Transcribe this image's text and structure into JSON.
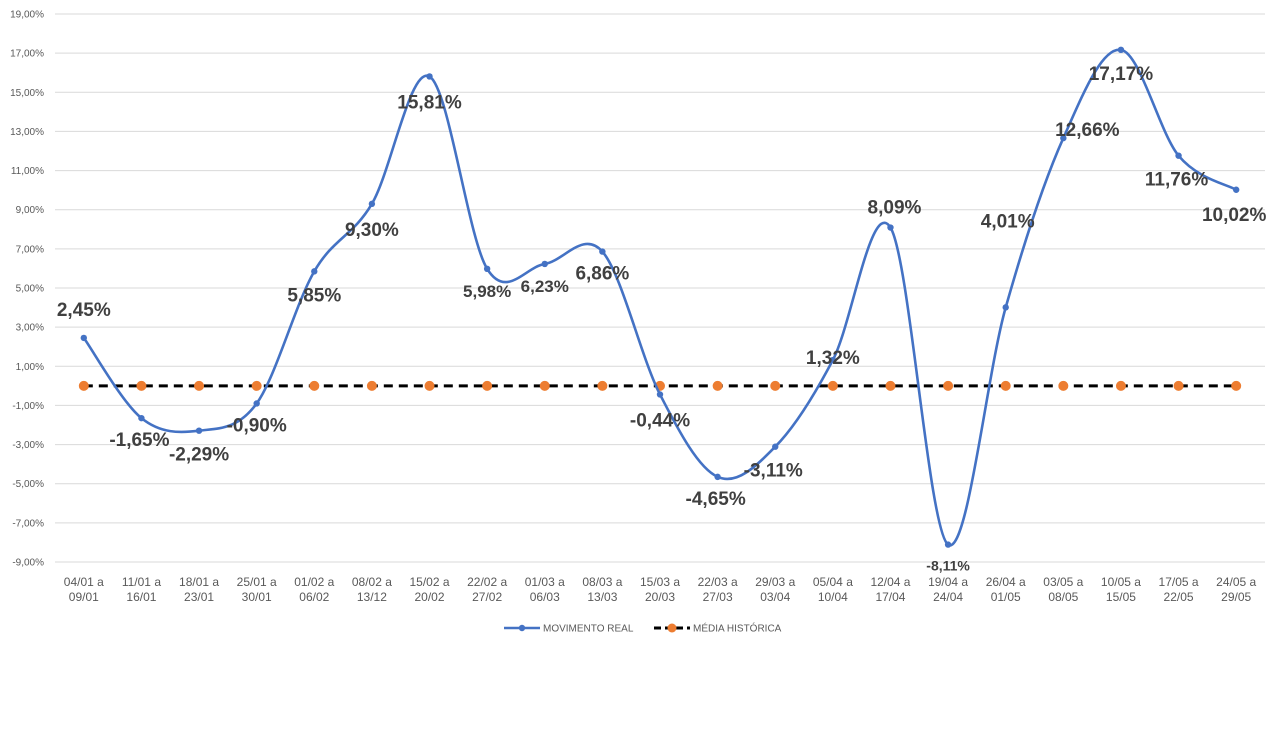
{
  "chart_data": {
    "type": "line",
    "title": "",
    "xlabel": "",
    "ylabel": "",
    "ylim": [
      -9,
      19
    ],
    "ytick_step": 2,
    "ytick_format": "0,00%",
    "grid": true,
    "legend_position": "bottom",
    "categories": [
      [
        "04/01 a",
        "09/01"
      ],
      [
        "11/01 a",
        "16/01"
      ],
      [
        "18/01 a",
        "23/01"
      ],
      [
        "25/01 a",
        "30/01"
      ],
      [
        "01/02 a",
        "06/02"
      ],
      [
        "08/02 a",
        "13/12"
      ],
      [
        "15/02 a",
        "20/02"
      ],
      [
        "22/02 a",
        "27/02"
      ],
      [
        "01/03 a",
        "06/03"
      ],
      [
        "08/03 a",
        "13/03"
      ],
      [
        "15/03 a",
        "20/03"
      ],
      [
        "22/03 a",
        "27/03"
      ],
      [
        "29/03 a",
        "03/04"
      ],
      [
        "05/04 a",
        "10/04"
      ],
      [
        "12/04 a",
        "17/04"
      ],
      [
        "19/04 a",
        "24/04"
      ],
      [
        "26/04 a",
        "01/05"
      ],
      [
        "03/05 a",
        "08/05"
      ],
      [
        "10/05 a",
        "15/05"
      ],
      [
        "17/05 a",
        "22/05"
      ],
      [
        "24/05 a",
        "29/05"
      ]
    ],
    "series": [
      {
        "name": "MOVIMENTO REAL",
        "color": "#4472C4",
        "style": "smooth-line-with-markers",
        "values": [
          2.45,
          -1.65,
          -2.29,
          -0.9,
          5.85,
          9.3,
          15.81,
          5.98,
          6.23,
          6.86,
          -0.44,
          -4.65,
          -3.11,
          1.32,
          8.09,
          -8.11,
          4.01,
          12.66,
          17.17,
          11.76,
          10.02
        ],
        "labels": [
          "2,45%",
          "-1,65%",
          "-2,29%",
          "-0,90%",
          "5,85%",
          "9,30%",
          "15,81%",
          "5,98%",
          "6,23%",
          "6,86%",
          "-0,44%",
          "-4,65%",
          "-3,11%",
          "1,32%",
          "8,09%",
          "-8,11%",
          "4,01%",
          "12,66%",
          "17,17%",
          "11,76%",
          "10,02%"
        ]
      },
      {
        "name": "MÉDIA HISTÓRICA",
        "color": "#000000",
        "marker_color": "#ED7D31",
        "style": "dashed-line-with-markers",
        "values": [
          0,
          0,
          0,
          0,
          0,
          0,
          0,
          0,
          0,
          0,
          0,
          0,
          0,
          0,
          0,
          0,
          0,
          0,
          0,
          0,
          0
        ]
      }
    ]
  }
}
